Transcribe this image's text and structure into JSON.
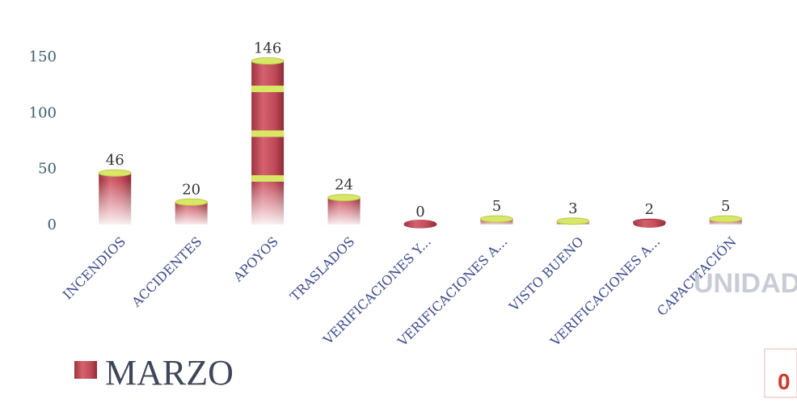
{
  "chart_data": {
    "type": "bar",
    "categories": [
      "INCENDIOS",
      "ACCIDENTES",
      "APOYOS",
      "TRASLADOS",
      "VERIFICACIONES Y...",
      "VERIFICACIONES A...",
      "VISTO BUENO",
      "VERIFICACIONES A...",
      "CAPACITACIÓN"
    ],
    "series": [
      {
        "name": "MARZO",
        "values": [
          46,
          20,
          146,
          24,
          0,
          5,
          3,
          2,
          5
        ]
      }
    ],
    "data_labels": [
      "46",
      "20",
      "146",
      "24",
      "0",
      "5",
      "3",
      "2",
      "5"
    ],
    "yticks": [
      "0",
      "50",
      "100",
      "150"
    ],
    "ylim": [
      0,
      160
    ],
    "legend_position": "bottom-left",
    "grid": false,
    "colors": {
      "bar": "#c9515f",
      "bar_dark": "#9e3340",
      "band": "#d8e866"
    }
  },
  "stamp": {
    "text": "UNIDAD",
    "digit": "0"
  }
}
